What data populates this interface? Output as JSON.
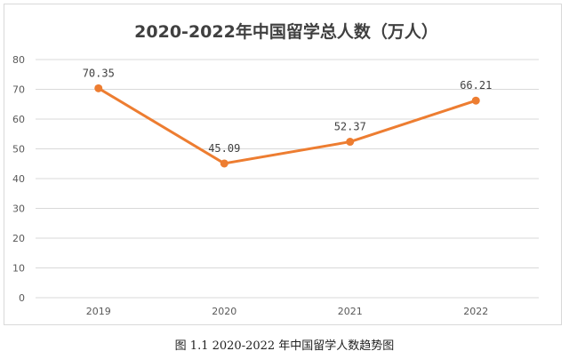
{
  "chart_data": {
    "type": "line",
    "title": "2020-2022年中国留学总人数（万人）",
    "categories": [
      "2019",
      "2020",
      "2021",
      "2022"
    ],
    "series": [
      {
        "values": [
          70.35,
          45.09,
          52.37,
          66.21
        ],
        "labels": [
          "70.35",
          "45.09",
          "52.37",
          "66.21"
        ]
      }
    ],
    "xlabel": "",
    "ylabel": "",
    "ylim": [
      0,
      80
    ],
    "yticks": [
      "0",
      "10",
      "20",
      "30",
      "40",
      "50",
      "60",
      "70",
      "80"
    ],
    "grid": true,
    "legend": "none"
  },
  "colors": {
    "line": "#ed7d31",
    "grid": "#d9d9d9",
    "text": "#595959"
  },
  "caption": "图 1.1 2020-2022 年中国留学人数趋势图"
}
